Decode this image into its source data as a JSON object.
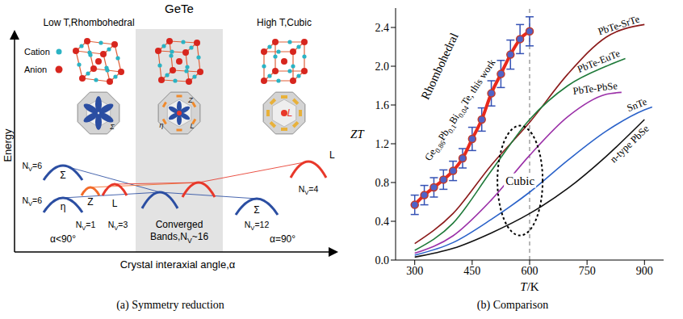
{
  "diagram": {
    "title": "GeTe",
    "phases": [
      "Low T,Rhombohedral",
      "High T,Cubic"
    ],
    "atoms": [
      {
        "label": "Cation",
        "color": "#2bb3c4"
      },
      {
        "label": "Anion",
        "color": "#d7261e"
      }
    ],
    "zones": [
      {
        "labels": [
          "Σ"
        ]
      },
      {
        "labels": [
          "η",
          "Z",
          "L"
        ]
      },
      {
        "labels": [
          "L"
        ]
      }
    ],
    "stages": [
      {
        "condition": "α<90°",
        "bands": [
          {
            "name": "Σ",
            "nv": "NV=6",
            "color": "#2b4ea2"
          },
          {
            "name": "Z",
            "nv": "NV=1",
            "color": "#f26b2a"
          },
          {
            "name": "η",
            "nv": "NV=6",
            "color": "#2b4ea2"
          },
          {
            "name": "L",
            "nv": "NV=3",
            "color": "#e8382a"
          }
        ]
      },
      {
        "condition": "Converged Bands,NV~16",
        "bands": [
          {
            "color": "#2b4ea2"
          },
          {
            "color": "#e8382a"
          }
        ]
      },
      {
        "condition": "α=90°",
        "bands": [
          {
            "name": "Σ",
            "nv": "NV=12",
            "color": "#2b4ea2"
          },
          {
            "name": "L",
            "nv": "NV=4",
            "color": "#e8382a"
          }
        ]
      }
    ],
    "y_label": "Energy",
    "x_label": "Crystal interaxial angle,α",
    "caption": "(a) Symmetry reduction"
  },
  "chart_data": {
    "type": "line",
    "title": "(b) Comparison",
    "x_label": "T/K",
    "y_label": "ZT",
    "xlim": [
      250,
      950
    ],
    "xticks": [
      300,
      450,
      600,
      750,
      900
    ],
    "ylim": [
      0,
      2.6
    ],
    "yticks": [
      {
        "value": 0,
        "label": "0.0"
      },
      0.4,
      0.8,
      1.2,
      1.6,
      {
        "value": 2,
        "label": "2.0"
      },
      2.4
    ],
    "grid": false,
    "series": [
      {
        "name": "Ge0.86Pb0.1Bi0.04Te, this work",
        "color": "#e8291c",
        "marker": "circle",
        "x": [
          300,
          325,
          350,
          375,
          400,
          425,
          450,
          475,
          500,
          525,
          550,
          575,
          600
        ],
        "values": [
          0.57,
          0.67,
          0.75,
          0.83,
          0.92,
          1.05,
          1.25,
          1.45,
          1.72,
          1.92,
          2.12,
          2.28,
          2.36
        ],
        "errors": [
          0.1,
          0.1,
          0.1,
          0.1,
          0.1,
          0.1,
          0.12,
          0.12,
          0.13,
          0.14,
          0.15,
          0.15,
          0.15
        ]
      },
      {
        "name": "PbTe-SrTe",
        "color": "#8b1a1a",
        "x": [
          300,
          400,
          500,
          600,
          700,
          800,
          900
        ],
        "values": [
          0.17,
          0.48,
          0.98,
          1.42,
          1.92,
          2.3,
          2.43
        ]
      },
      {
        "name": "PbTe-EuTe",
        "color": "#1f7a3a",
        "x": [
          300,
          400,
          500,
          600,
          700,
          800,
          850
        ],
        "values": [
          0.1,
          0.38,
          0.92,
          1.45,
          1.8,
          2.0,
          2.08
        ]
      },
      {
        "name": "PbTe-PbSe",
        "color": "#9b30a8",
        "x": [
          300,
          400,
          500,
          600,
          700,
          800,
          840
        ],
        "values": [
          0.07,
          0.25,
          0.62,
          1.08,
          1.48,
          1.71,
          1.73
        ]
      },
      {
        "name": "SnTe",
        "color": "#2a62c9",
        "x": [
          300,
          400,
          500,
          600,
          700,
          800,
          900,
          920
        ],
        "values": [
          0.05,
          0.18,
          0.42,
          0.7,
          1.03,
          1.33,
          1.55,
          1.58
        ]
      },
      {
        "name": "n-type PbSe",
        "color": "#111111",
        "x": [
          300,
          400,
          500,
          600,
          700,
          800,
          900
        ],
        "values": [
          0.03,
          0.12,
          0.28,
          0.48,
          0.74,
          1.07,
          1.45
        ]
      }
    ],
    "reference_lines": [
      {
        "x": 600,
        "line_style": "dashed"
      }
    ],
    "annotations": [
      {
        "text": "Rhombohedral",
        "x": 365,
        "y": 2.0
      },
      {
        "text": "Cubic",
        "x": 575,
        "y": 0.82,
        "marker": "ellipse",
        "line_style": "dotted"
      }
    ]
  }
}
